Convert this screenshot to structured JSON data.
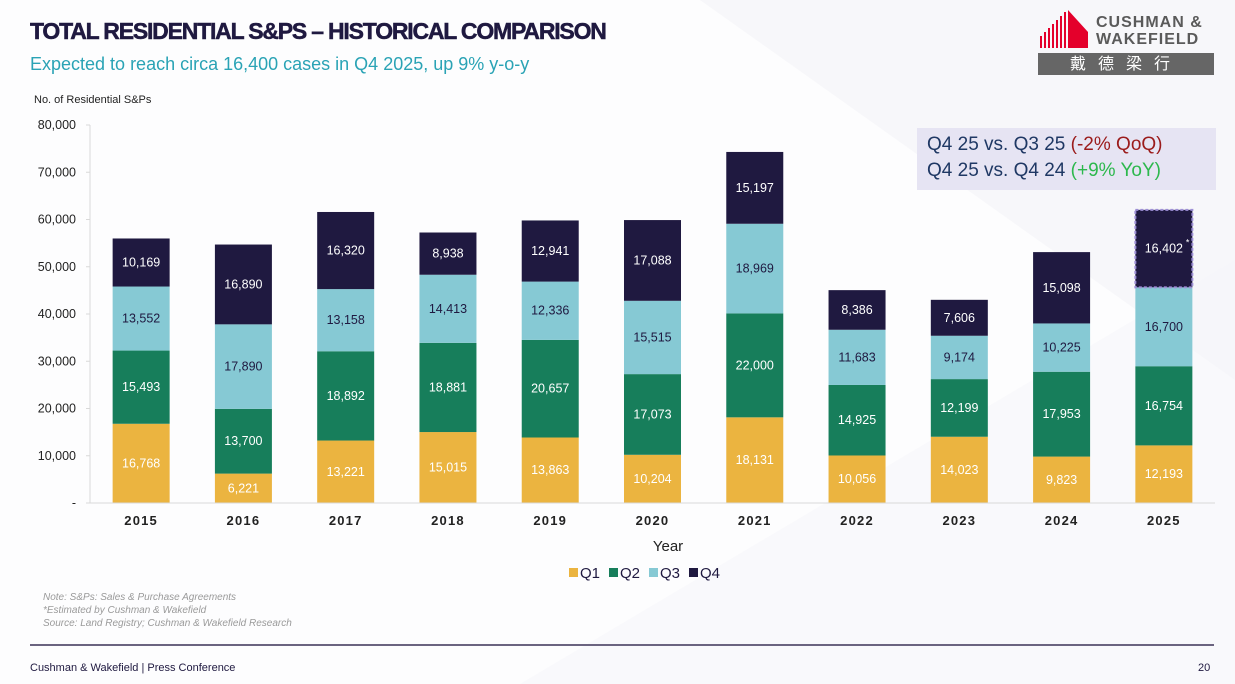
{
  "header": {
    "title": "TOTAL RESIDENTIAL S&PS – HISTORICAL COMPARISON",
    "subtitle": "Expected to reach circa 16,400 cases in Q4 2025, up 9% y-o-y"
  },
  "logo": {
    "line1": "CUSHMAN &",
    "line2": "WAKEFIELD",
    "chinese": "戴德梁行",
    "icon": "building-icon",
    "brand_color": "#e4002b"
  },
  "comparison_box": {
    "line1_prefix": "Q4 25 vs. Q3 25 ",
    "line1_change": "(-2% QoQ)",
    "line2_prefix": "Q4 25 vs. Q4 24 ",
    "line2_change": "(+9% YoY)",
    "negative_color": "#9b1b1b",
    "positive_color": "#2db84d"
  },
  "notes": {
    "line1": "Note: S&Ps: Sales & Purchase Agreements",
    "line2": "*Estimated by Cushman & Wakefield",
    "line3": "Source: Land Registry; Cushman & Wakefield Research"
  },
  "footer": {
    "text": "Cushman & Wakefield | Press Conference",
    "page_number": "20"
  },
  "chart_data": {
    "type": "bar",
    "stacked": true,
    "title": "TOTAL RESIDENTIAL S&PS – HISTORICAL COMPARISON",
    "xlabel": "Year",
    "ylabel": "No. of Residential S&Ps",
    "ylim": [
      0,
      80000
    ],
    "yticks": [
      0,
      10000,
      20000,
      30000,
      40000,
      50000,
      60000,
      70000,
      80000
    ],
    "ytick_labels": [
      "-",
      "10,000",
      "20,000",
      "30,000",
      "40,000",
      "50,000",
      "60,000",
      "70,000",
      "80,000"
    ],
    "grid": false,
    "legend_position": "bottom",
    "categories": [
      "2015",
      "2016",
      "2017",
      "2018",
      "2019",
      "2020",
      "2021",
      "2022",
      "2023",
      "2024",
      "2025"
    ],
    "series": [
      {
        "name": "Q1",
        "color": "#ebb440",
        "label_color": "#ffffff",
        "values": [
          16768,
          6221,
          13221,
          15015,
          13863,
          10204,
          18131,
          10056,
          14023,
          9823,
          12193
        ]
      },
      {
        "name": "Q2",
        "color": "#177e5b",
        "label_color": "#ffffff",
        "values": [
          15493,
          13700,
          18892,
          18881,
          20657,
          17073,
          22000,
          14925,
          12199,
          17953,
          16754
        ]
      },
      {
        "name": "Q3",
        "color": "#86c9d4",
        "label_color": "#1f1940",
        "values": [
          13552,
          17890,
          13158,
          14413,
          12336,
          15515,
          18969,
          11683,
          9174,
          10225,
          16700
        ]
      },
      {
        "name": "Q4",
        "color": "#1f1940",
        "label_color": "#ffffff",
        "values": [
          10169,
          16890,
          16320,
          8938,
          12941,
          17088,
          15197,
          8386,
          7606,
          15098,
          16402
        ]
      }
    ],
    "annotations": [
      {
        "category": "2025",
        "series": "Q4",
        "note": "*",
        "meaning": "Estimated by Cushman & Wakefield",
        "style": "dashed outline"
      }
    ]
  }
}
